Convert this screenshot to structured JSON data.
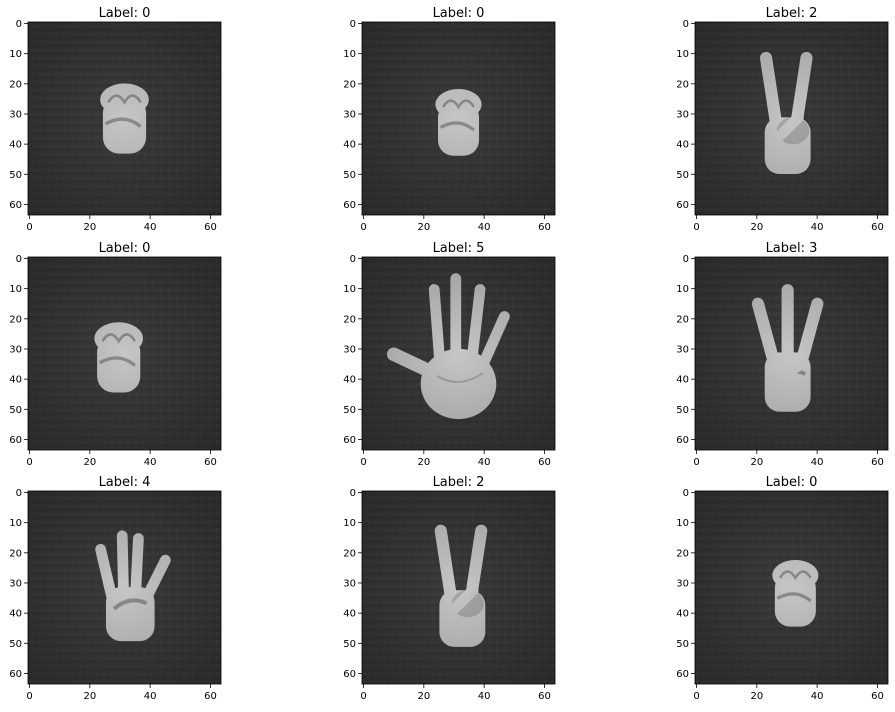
{
  "figure": {
    "background_color": "#ffffff",
    "panel_background_color": "#3a3a3a",
    "hand_color": "#c6c6c6",
    "hand_shadow_color": "#8c8c8c",
    "axis_color": "#000000"
  },
  "panels": [
    {
      "title": "Label: 0",
      "gesture": "fist",
      "x_ticks": [
        "0",
        "20",
        "40",
        "60"
      ],
      "y_ticks": [
        "0",
        "10",
        "20",
        "30",
        "40",
        "50",
        "60"
      ]
    },
    {
      "title": "Label: 0",
      "gesture": "fist",
      "x_ticks": [
        "0",
        "20",
        "40",
        "60"
      ],
      "y_ticks": [
        "0",
        "10",
        "20",
        "30",
        "40",
        "50",
        "60"
      ]
    },
    {
      "title": "Label: 2",
      "gesture": "two-fingers",
      "x_ticks": [
        "0",
        "20",
        "40",
        "60"
      ],
      "y_ticks": [
        "0",
        "10",
        "20",
        "30",
        "40",
        "50",
        "60"
      ]
    },
    {
      "title": "Label: 0",
      "gesture": "fist",
      "x_ticks": [
        "0",
        "20",
        "40",
        "60"
      ],
      "y_ticks": [
        "0",
        "10",
        "20",
        "30",
        "40",
        "50",
        "60"
      ]
    },
    {
      "title": "Label: 5",
      "gesture": "open-hand",
      "x_ticks": [
        "0",
        "20",
        "40",
        "60"
      ],
      "y_ticks": [
        "0",
        "10",
        "20",
        "30",
        "40",
        "50",
        "60"
      ]
    },
    {
      "title": "Label: 3",
      "gesture": "three-fingers",
      "x_ticks": [
        "0",
        "20",
        "40",
        "60"
      ],
      "y_ticks": [
        "0",
        "10",
        "20",
        "30",
        "40",
        "50",
        "60"
      ]
    },
    {
      "title": "Label: 4",
      "gesture": "four-fingers",
      "x_ticks": [
        "0",
        "20",
        "40",
        "60"
      ],
      "y_ticks": [
        "0",
        "10",
        "20",
        "30",
        "40",
        "50",
        "60"
      ]
    },
    {
      "title": "Label: 2",
      "gesture": "two-fingers",
      "x_ticks": [
        "0",
        "20",
        "40",
        "60"
      ],
      "y_ticks": [
        "0",
        "10",
        "20",
        "30",
        "40",
        "50",
        "60"
      ]
    },
    {
      "title": "Label: 0",
      "gesture": "fist",
      "x_ticks": [
        "0",
        "20",
        "40",
        "60"
      ],
      "y_ticks": [
        "0",
        "10",
        "20",
        "30",
        "40",
        "50",
        "60"
      ]
    }
  ]
}
